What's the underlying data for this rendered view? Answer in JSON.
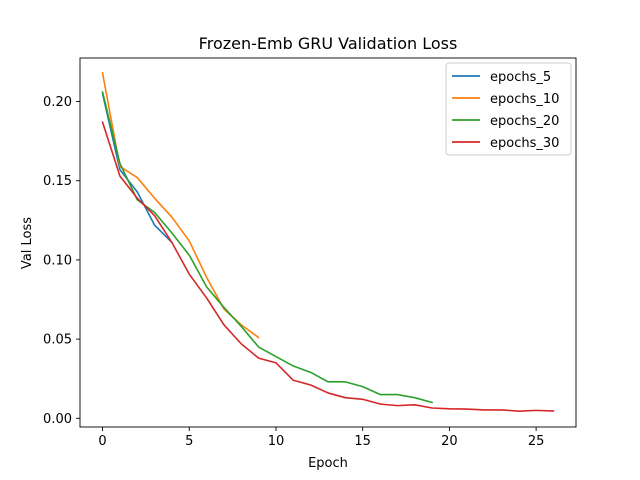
{
  "chart_data": {
    "type": "line",
    "title": "Frozen-Emb GRU Validation Loss",
    "xlabel": "Epoch",
    "ylabel": "Val Loss",
    "xlim": [
      -1.3,
      27.3
    ],
    "ylim": [
      -0.0055,
      0.2275
    ],
    "xticks": [
      0,
      5,
      10,
      15,
      20,
      25
    ],
    "yticks": [
      0.0,
      0.05,
      0.1,
      0.15,
      0.2
    ],
    "xtick_labels": [
      "0",
      "5",
      "10",
      "15",
      "20",
      "25"
    ],
    "ytick_labels": [
      "0.00",
      "0.05",
      "0.10",
      "0.15",
      "0.20"
    ],
    "grid": false,
    "legend_position": "top-right",
    "series": [
      {
        "name": "epochs_5",
        "color": "#1f77b4",
        "x": [
          0,
          1,
          2,
          3,
          4
        ],
        "y": [
          0.205,
          0.157,
          0.143,
          0.122,
          0.111
        ]
      },
      {
        "name": "epochs_10",
        "color": "#ff7f0e",
        "x": [
          0,
          1,
          2,
          3,
          4,
          5,
          6,
          7,
          8,
          9
        ],
        "y": [
          0.218,
          0.159,
          0.152,
          0.139,
          0.127,
          0.112,
          0.089,
          0.069,
          0.059,
          0.051
        ]
      },
      {
        "name": "epochs_20",
        "color": "#2ca02c",
        "x": [
          0,
          1,
          2,
          3,
          4,
          5,
          6,
          7,
          8,
          9,
          10,
          11,
          12,
          13,
          14,
          15,
          16,
          17,
          18,
          19
        ],
        "y": [
          0.206,
          0.161,
          0.138,
          0.13,
          0.117,
          0.103,
          0.083,
          0.07,
          0.058,
          0.045,
          0.039,
          0.033,
          0.029,
          0.023,
          0.023,
          0.02,
          0.015,
          0.015,
          0.013,
          0.01
        ]
      },
      {
        "name": "epochs_30",
        "color": "#d62728",
        "x": [
          0,
          1,
          2,
          3,
          4,
          5,
          6,
          7,
          8,
          9,
          10,
          11,
          12,
          13,
          14,
          15,
          16,
          17,
          18,
          19,
          20,
          21,
          22,
          23,
          24,
          25,
          26
        ],
        "y": [
          0.187,
          0.153,
          0.139,
          0.128,
          0.111,
          0.091,
          0.076,
          0.059,
          0.047,
          0.038,
          0.035,
          0.024,
          0.021,
          0.016,
          0.013,
          0.012,
          0.009,
          0.008,
          0.0085,
          0.0065,
          0.006,
          0.0058,
          0.0053,
          0.0053,
          0.0045,
          0.005,
          0.0046
        ]
      }
    ]
  }
}
